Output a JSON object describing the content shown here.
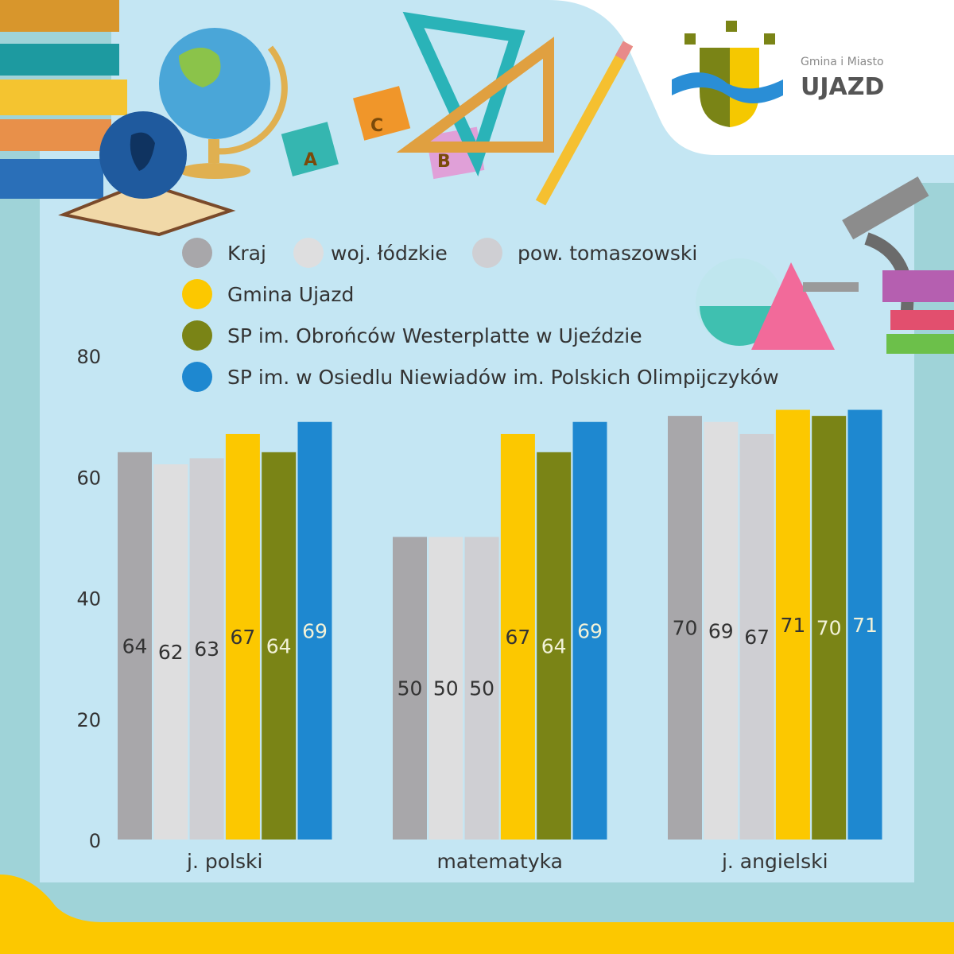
{
  "logo": {
    "line1": "Gmina i Miasto",
    "line2": "UJAZD"
  },
  "chart_data": {
    "type": "bar",
    "title": "",
    "xlabel": "",
    "ylabel": "",
    "ylim": [
      0,
      80
    ],
    "yticks": [
      "0",
      "20",
      "40",
      "60",
      "80"
    ],
    "categories": [
      "j. polski",
      "matematyka",
      "j. angielski"
    ],
    "legend_position": "top",
    "series": [
      {
        "name": "Kraj",
        "color": "#a8a7aa",
        "values": [
          64,
          50,
          70
        ]
      },
      {
        "name": "woj. łódzkie",
        "color": "#dededf",
        "values": [
          62,
          50,
          69
        ]
      },
      {
        "name": "pow. tomaszowski",
        "color": "#cfcfd3",
        "values": [
          63,
          50,
          67
        ]
      },
      {
        "name": "Gmina Ujazd",
        "color": "#fcc800",
        "values": [
          67,
          67,
          71
        ]
      },
      {
        "name": "SP im. Obrońców Westerplatte w Ujeździe",
        "color": "#7a8416",
        "values": [
          64,
          64,
          70
        ]
      },
      {
        "name": "SP im. w Osiedlu Niewiadów im. Polskich Olimpijczyków",
        "color": "#1e88d0",
        "values": [
          69,
          69,
          71
        ]
      }
    ]
  }
}
